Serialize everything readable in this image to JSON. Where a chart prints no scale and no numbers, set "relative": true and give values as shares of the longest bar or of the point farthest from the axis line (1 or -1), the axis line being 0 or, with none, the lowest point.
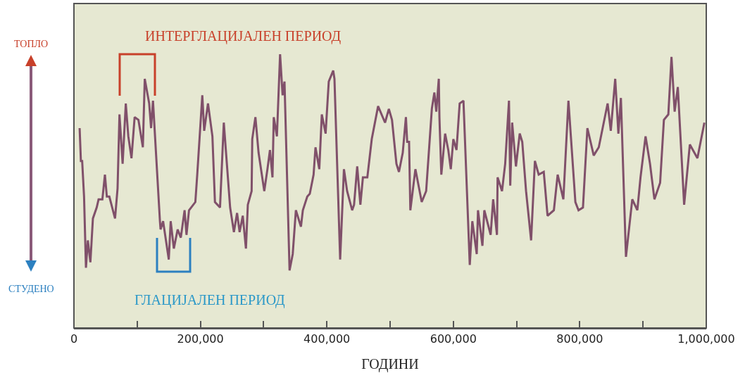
{
  "chart_data": {
    "type": "line",
    "relative": true,
    "xlabel": "ГОДИНИ",
    "annotations": [
      "ТОПЛО",
      "СТУДЕНО",
      "ИНТЕРГЛАЦИЈАЛЕН ПЕРИОД",
      "ГЛАЦИЈАЛЕН ПЕРИОД"
    ],
    "xlim": [
      0,
      1000000
    ],
    "xticks": [
      0,
      {
        "value": 100000,
        "label": null
      },
      {
        "value": 200000,
        "label": "200,000"
      },
      {
        "value": 300000,
        "label": null
      },
      {
        "value": 400000,
        "label": "400,000"
      },
      {
        "value": 500000,
        "label": null
      },
      {
        "value": 600000,
        "label": "600,000"
      },
      {
        "value": 700000,
        "label": null
      },
      {
        "value": 800000,
        "label": "800,000"
      },
      {
        "value": 900000,
        "label": null
      },
      {
        "value": 1000000,
        "label": "1,000,000"
      }
    ],
    "tick_labels": "x",
    "marker": "none",
    "line_style": "solid",
    "series": [
      {
        "color": "#80506a",
        "x": [
          9000,
          11000,
          13000,
          16000,
          19000,
          22000,
          26000,
          30000,
          36000,
          39000,
          45000,
          49000,
          52000,
          56000,
          65000,
          69000,
          72000,
          77000,
          82000,
          86000,
          91000,
          96000,
          102000,
          109000,
          112000,
          119000,
          122000,
          125000,
          136000,
          137000,
          141000,
          150000,
          153000,
          158000,
          164000,
          169000,
          175000,
          178000,
          182000,
          192000,
          195000,
          203000,
          206000,
          212000,
          219000,
          223000,
          231000,
          237000,
          247000,
          253000,
          258000,
          262000,
          267000,
          272000,
          275000,
          281000,
          282000,
          287000,
          292000,
          301000,
          306000,
          310000,
          314000,
          316000,
          321000,
          323000,
          326000,
          330000,
          333000,
          341000,
          346000,
          351000,
          359000,
          362000,
          369000,
          373000,
          379000,
          382000,
          388000,
          392000,
          398000,
          403000,
          410000,
          412000,
          421000,
          427000,
          432000,
          440000,
          443000,
          448000,
          453000,
          457000,
          464000,
          471000,
          481000,
          492000,
          498000,
          503000,
          510000,
          514000,
          520000,
          525000,
          527000,
          530000,
          532000,
          540000,
          550000,
          557000,
          566000,
          570000,
          573000,
          577000,
          578000,
          581000,
          587000,
          592000,
          596000,
          600000,
          605000,
          610000,
          616000,
          626000,
          630000,
          637000,
          639000,
          646000,
          649000,
          659000,
          663000,
          669000,
          670000,
          677000,
          682000,
          688000,
          690000,
          693000,
          699000,
          705000,
          709000,
          715000,
          723000,
          729000,
          735000,
          743000,
          749000,
          759000,
          765000,
          774000,
          782000,
          793000,
          798000,
          805000,
          812000,
          822000,
          830000,
          844000,
          849000,
          856000,
          861000,
          865000,
          873000,
          883000,
          891000,
          896000,
          904000,
          911000,
          918000,
          927000,
          933000,
          940000,
          945000,
          950000,
          955000,
          965000,
          974000,
          986000,
          997000
        ],
        "values": [
          0.73,
          0.61,
          0.61,
          0.48,
          0.22,
          0.32,
          0.24,
          0.4,
          0.44,
          0.47,
          0.47,
          0.56,
          0.48,
          0.48,
          0.4,
          0.51,
          0.78,
          0.6,
          0.82,
          0.7,
          0.62,
          0.77,
          0.76,
          0.66,
          0.91,
          0.82,
          0.73,
          0.83,
          0.39,
          0.36,
          0.39,
          0.25,
          0.39,
          0.29,
          0.36,
          0.33,
          0.43,
          0.34,
          0.43,
          0.46,
          0.56,
          0.85,
          0.72,
          0.82,
          0.7,
          0.46,
          0.44,
          0.75,
          0.44,
          0.35,
          0.42,
          0.35,
          0.41,
          0.29,
          0.45,
          0.5,
          0.69,
          0.77,
          0.64,
          0.5,
          0.58,
          0.65,
          0.55,
          0.77,
          0.7,
          0.82,
          1,
          0.85,
          0.9,
          0.21,
          0.27,
          0.43,
          0.37,
          0.43,
          0.48,
          0.49,
          0.56,
          0.66,
          0.58,
          0.78,
          0.71,
          0.9,
          0.94,
          0.91,
          0.25,
          0.58,
          0.5,
          0.43,
          0.45,
          0.59,
          0.45,
          0.55,
          0.55,
          0.69,
          0.81,
          0.75,
          0.8,
          0.76,
          0.6,
          0.57,
          0.64,
          0.77,
          0.68,
          0.68,
          0.43,
          0.58,
          0.46,
          0.5,
          0.8,
          0.86,
          0.79,
          0.91,
          0.77,
          0.56,
          0.71,
          0.65,
          0.58,
          0.69,
          0.65,
          0.82,
          0.83,
          0.23,
          0.39,
          0.27,
          0.43,
          0.3,
          0.43,
          0.34,
          0.47,
          0.34,
          0.55,
          0.5,
          0.6,
          0.83,
          0.52,
          0.75,
          0.59,
          0.71,
          0.68,
          0.5,
          0.32,
          0.61,
          0.56,
          0.57,
          0.41,
          0.43,
          0.56,
          0.47,
          0.83,
          0.46,
          0.43,
          0.44,
          0.73,
          0.63,
          0.66,
          0.82,
          0.72,
          0.91,
          0.71,
          0.84,
          0.26,
          0.47,
          0.43,
          0.55,
          0.7,
          0.6,
          0.47,
          0.53,
          0.76,
          0.78,
          0.99,
          0.79,
          0.88,
          0.45,
          0.67,
          0.62,
          0.75
        ]
      }
    ]
  }
}
